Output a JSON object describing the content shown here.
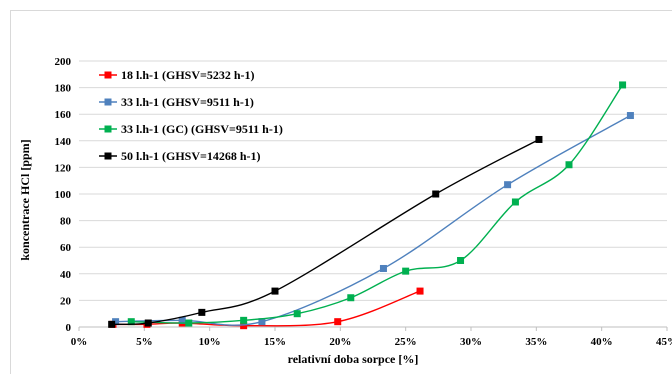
{
  "chart_data": {
    "type": "scatter",
    "xlabel": "relativní doba sorpce [%]",
    "ylabel": "koncentrace HCl [ppm]",
    "xlim": [
      0,
      45
    ],
    "ylim": [
      0,
      200
    ],
    "xticks": [
      "0%",
      "5%",
      "10%",
      "15%",
      "20%",
      "25%",
      "30%",
      "35%",
      "40%",
      "45%"
    ],
    "yticks": [
      "0",
      "20",
      "40",
      "60",
      "80",
      "100",
      "120",
      "140",
      "160",
      "180",
      "200"
    ],
    "legend_position": "top-left",
    "series": [
      {
        "name": "18 l.h-1 (GHSV=5232 h-1)",
        "color": "#ff0000",
        "x": [
          2.6,
          5.2,
          7.9,
          12.6,
          19.8,
          26.1
        ],
        "y": [
          2,
          2,
          3,
          1,
          4,
          27
        ]
      },
      {
        "name": "33 l.h-1 (GHSV=9511 h-1)",
        "color": "#4f81bd",
        "x": [
          2.8,
          7.9,
          14.0,
          23.3,
          32.8,
          42.2
        ],
        "y": [
          4,
          5,
          4,
          44,
          107,
          159
        ]
      },
      {
        "name": "33 l.h-1 (GC) (GHSV=9511 h-1)",
        "color": "#00b050",
        "x": [
          4.0,
          8.4,
          12.6,
          16.7,
          20.8,
          25.0,
          29.2,
          33.4,
          37.5,
          41.6
        ],
        "y": [
          4,
          3,
          5,
          10,
          22,
          42,
          50,
          94,
          122,
          182
        ]
      },
      {
        "name": "50 l.h-1 (GHSV=14268 h-1)",
        "color": "#000000",
        "x": [
          2.5,
          5.3,
          9.4,
          15.0,
          27.3,
          35.2
        ],
        "y": [
          2,
          3,
          11,
          27,
          100,
          141
        ]
      }
    ]
  }
}
